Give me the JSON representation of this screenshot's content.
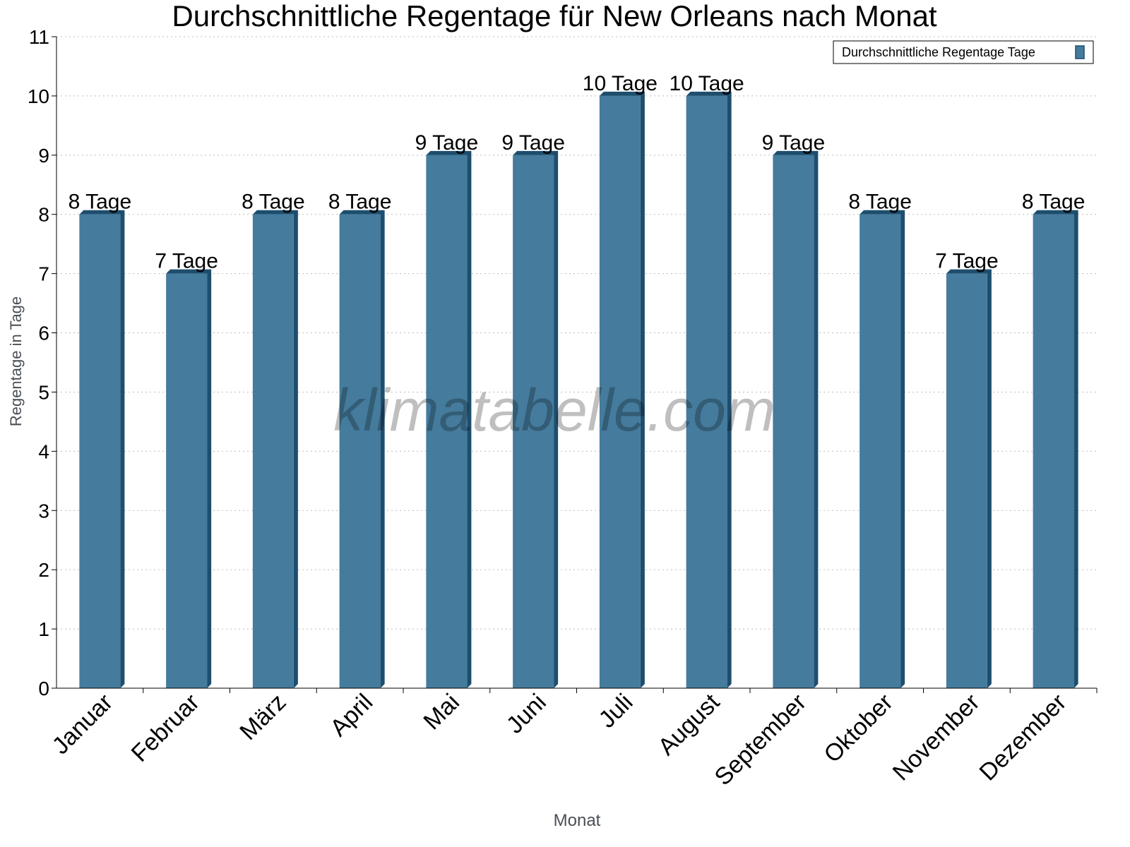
{
  "chart_data": {
    "type": "bar",
    "title": "Durchschnittliche Regentage für New Orleans nach Monat",
    "xlabel": "Monat",
    "ylabel": "Regentage in Tage",
    "ylim": [
      0,
      11
    ],
    "yticks": [
      0,
      1,
      2,
      3,
      4,
      5,
      6,
      7,
      8,
      9,
      10,
      11
    ],
    "grid": true,
    "legend_position": "top-right",
    "categories": [
      "Januar",
      "Februar",
      "März",
      "April",
      "Mai",
      "Juni",
      "Juli",
      "August",
      "September",
      "Oktober",
      "November",
      "Dezember"
    ],
    "series": [
      {
        "name": "Durchschnittliche Regentage Tage",
        "values": [
          8,
          7,
          8,
          8,
          9,
          9,
          10,
          10,
          9,
          8,
          7,
          8
        ]
      }
    ],
    "data_labels": [
      "8 Tage",
      "7 Tage",
      "8 Tage",
      "8 Tage",
      "9 Tage",
      "9 Tage",
      "10 Tage",
      "10 Tage",
      "9 Tage",
      "8 Tage",
      "7 Tage",
      "8 Tage"
    ],
    "colors": {
      "bar": "#457b9d",
      "bar_side": "#1d4e6e"
    }
  },
  "watermark": "klimatabelle.com"
}
